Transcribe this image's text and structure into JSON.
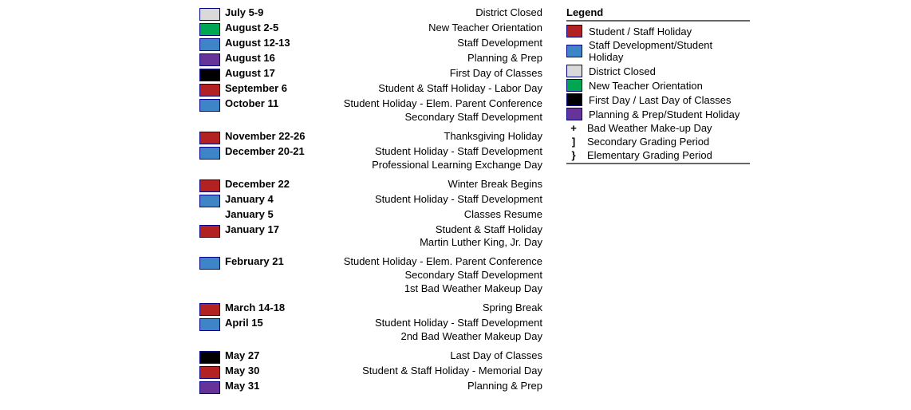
{
  "colors": {
    "districtClosed": "#d9d9d9",
    "newTeacher": "#00a651",
    "staffDev": "#3d85c6",
    "planningPrep": "#663399",
    "firstLastDay": "#000000",
    "studentStaffHoliday": "#b22222"
  },
  "events": [
    {
      "swatchKey": "districtClosed",
      "date": "July 5-9",
      "desc": [
        "District Closed"
      ]
    },
    {
      "swatchKey": "newTeacher",
      "date": "August 2-5",
      "desc": [
        "New Teacher Orientation"
      ]
    },
    {
      "swatchKey": "staffDev",
      "date": "August 12-13",
      "desc": [
        "Staff Development"
      ]
    },
    {
      "swatchKey": "planningPrep",
      "date": "August 16",
      "desc": [
        "Planning & Prep"
      ]
    },
    {
      "swatchKey": "firstLastDay",
      "date": "August 17",
      "desc": [
        "First Day of Classes"
      ]
    },
    {
      "swatchKey": "studentStaffHoliday",
      "date": "September 6",
      "desc": [
        "Student & Staff Holiday - Labor Day"
      ]
    },
    {
      "swatchKey": "staffDev",
      "date": "October 11",
      "desc": [
        "Student Holiday - Elem. Parent Conference",
        "Secondary Staff Development"
      ]
    },
    {
      "gap": true
    },
    {
      "swatchKey": "studentStaffHoliday",
      "date": "November 22-26",
      "desc": [
        "Thanksgiving Holiday"
      ]
    },
    {
      "swatchKey": "staffDev",
      "date": "December 20-21",
      "desc": [
        "Student Holiday - Staff Development",
        "Professional Learning Exchange Day"
      ]
    },
    {
      "gap": true
    },
    {
      "swatchKey": "studentStaffHoliday",
      "date": "December 22",
      "desc": [
        "Winter Break Begins"
      ]
    },
    {
      "swatchKey": "staffDev",
      "date": "January 4",
      "desc": [
        "Student Holiday - Staff Development"
      ]
    },
    {
      "swatchKey": "",
      "date": "January 5",
      "desc": [
        "Classes Resume"
      ]
    },
    {
      "swatchKey": "studentStaffHoliday",
      "date": "January 17",
      "desc": [
        "Student & Staff Holiday",
        "Martin Luther King, Jr. Day"
      ]
    },
    {
      "gap": true
    },
    {
      "swatchKey": "staffDev",
      "date": "February 21",
      "desc": [
        "Student Holiday - Elem. Parent Conference",
        "Secondary Staff Development",
        "1st Bad Weather Makeup Day"
      ]
    },
    {
      "gap": true
    },
    {
      "swatchKey": "studentStaffHoliday",
      "date": "March 14-18",
      "desc": [
        "Spring Break"
      ]
    },
    {
      "swatchKey": "staffDev",
      "date": "April 15",
      "desc": [
        "Student Holiday - Staff Development",
        "2nd Bad Weather Makeup Day"
      ]
    },
    {
      "gap": true
    },
    {
      "swatchKey": "firstLastDay",
      "date": "May 27",
      "desc": [
        "Last Day of Classes"
      ]
    },
    {
      "swatchKey": "studentStaffHoliday",
      "date": "May 30",
      "desc": [
        "Student & Staff Holiday - Memorial Day"
      ]
    },
    {
      "swatchKey": "planningPrep",
      "date": "May 31",
      "desc": [
        "Planning & Prep"
      ]
    }
  ],
  "legend": {
    "title": "Legend",
    "items": [
      {
        "type": "swatch",
        "colorKey": "studentStaffHoliday",
        "label": "Student / Staff Holiday"
      },
      {
        "type": "swatch",
        "colorKey": "staffDev",
        "label": "Staff Development/Student Holiday"
      },
      {
        "type": "swatch",
        "colorKey": "districtClosed",
        "label": "District Closed"
      },
      {
        "type": "swatch",
        "colorKey": "newTeacher",
        "label": "New Teacher Orientation"
      },
      {
        "type": "swatch",
        "colorKey": "firstLastDay",
        "label": "First Day / Last Day of Classes"
      },
      {
        "type": "swatch",
        "colorKey": "planningPrep",
        "label": "Planning & Prep/Student Holiday"
      },
      {
        "type": "symbol",
        "symbol": "+",
        "label": "Bad Weather Make-up Day"
      },
      {
        "type": "symbol",
        "symbol": "]",
        "label": "Secondary Grading Period"
      },
      {
        "type": "symbol",
        "symbol": "}",
        "label": "Elementary Grading Period"
      }
    ]
  }
}
